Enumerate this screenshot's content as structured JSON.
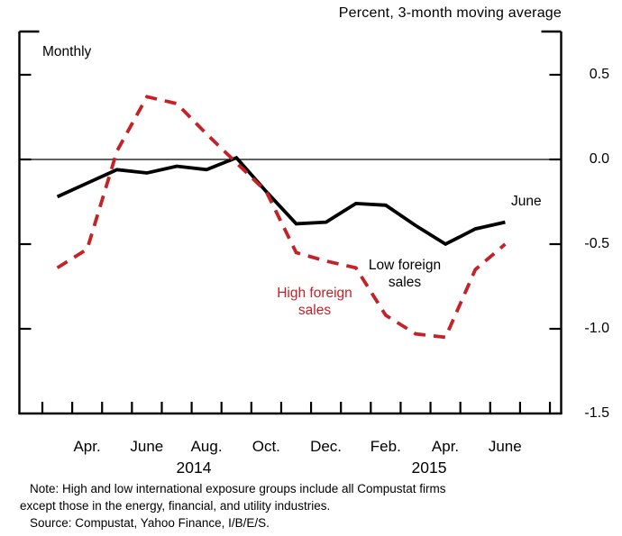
{
  "title": "Percent, 3-month moving average",
  "frequency_label": "Monthly",
  "last_point_label": "June",
  "note_line1": "Note: High and low international exposure groups include all Compustat firms",
  "note_line2": "except those in the energy, financial, and utility industries.",
  "source_line": "Source: Compustat, Yahoo Finance, I/B/E/S.",
  "chart_data": {
    "type": "line",
    "title": "Percent, 3-month moving average",
    "xlabel": "",
    "ylabel": "Percent",
    "ylim": [
      -1.5,
      0.75
    ],
    "grid": "zero-line-only",
    "legend_position": "inline-annotations",
    "x": [
      "2014-03",
      "2014-04",
      "2014-05",
      "2014-06",
      "2014-07",
      "2014-08",
      "2014-09",
      "2014-10",
      "2014-11",
      "2014-12",
      "2015-01",
      "2015-02",
      "2015-03",
      "2015-04",
      "2015-05",
      "2015-06"
    ],
    "series": [
      {
        "name": "Low foreign sales",
        "label_text": "Low foreign\nsales",
        "color": "#000000",
        "style": "solid",
        "values": [
          -0.22,
          -0.14,
          -0.06,
          -0.08,
          -0.04,
          -0.06,
          0.01,
          -0.19,
          -0.38,
          -0.37,
          -0.26,
          -0.27,
          -0.39,
          -0.5,
          -0.41,
          -0.37
        ]
      },
      {
        "name": "High foreign sales",
        "label_text": "High foreign\nsales",
        "color": "#c42227",
        "style": "dashed",
        "values": [
          -0.64,
          -0.53,
          0.05,
          0.37,
          0.33,
          0.15,
          -0.02,
          -0.19,
          -0.55,
          -0.6,
          -0.64,
          -0.92,
          -1.03,
          -1.05,
          -0.65,
          -0.5
        ]
      }
    ],
    "y_tick_labels": [
      "0.5",
      "0.0",
      "-0.5",
      "-1.0",
      "-1.5"
    ],
    "y_tick_values": [
      0.5,
      0.0,
      -0.5,
      -1.0,
      -1.5
    ],
    "x_tick_labels": [
      "Apr.",
      "June",
      "Aug.",
      "Oct.",
      "Dec.",
      "Feb.",
      "Apr.",
      "June"
    ],
    "year_labels": [
      "2014",
      "2015"
    ]
  }
}
